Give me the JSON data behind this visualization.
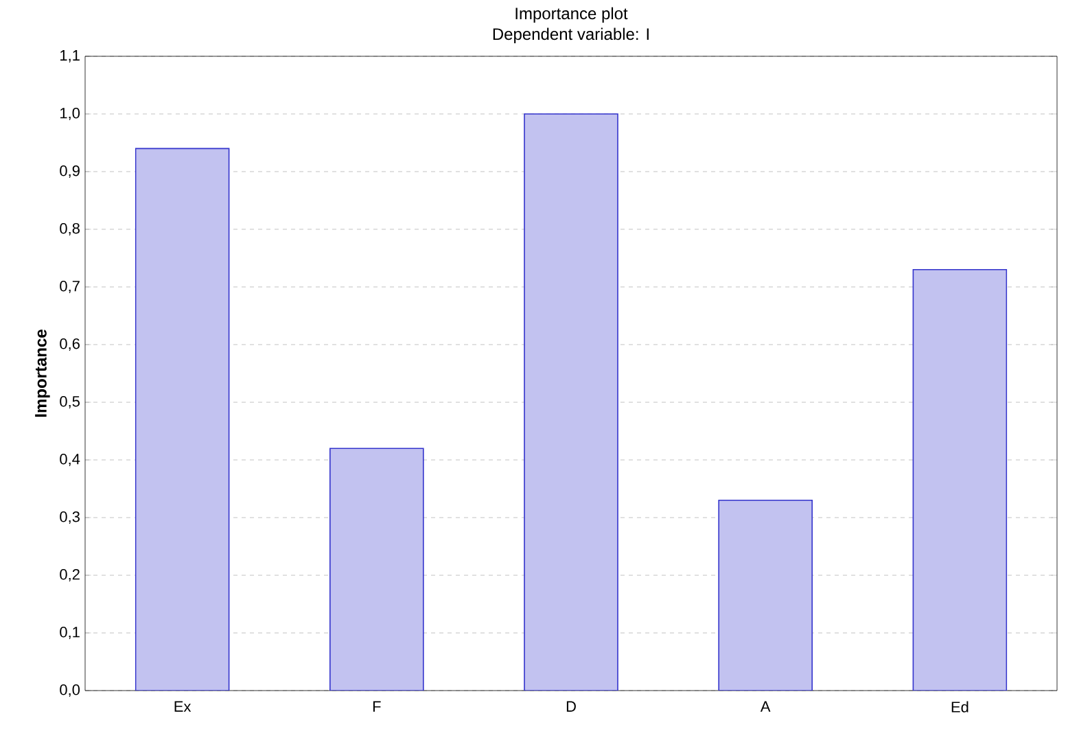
{
  "chart_data": {
    "type": "bar",
    "title": "Importance plot",
    "subtitle": "Dependent variable: I",
    "ylabel": "Importance",
    "categories": [
      "Ex",
      "F",
      "D",
      "A",
      "Ed"
    ],
    "values": [
      0.94,
      0.42,
      1.0,
      0.33,
      0.73
    ],
    "color": "#3333cc",
    "ylim": [
      0,
      1.1
    ],
    "yticks": [
      {
        "value": 0,
        "label": "0,0"
      },
      {
        "value": 0.1,
        "label": "0,1"
      },
      {
        "value": 0.2,
        "label": "0,2"
      },
      {
        "value": 0.3,
        "label": "0,3"
      },
      {
        "value": 0.4,
        "label": "0,4"
      },
      {
        "value": 0.5,
        "label": "0,5"
      },
      {
        "value": 0.6,
        "label": "0,6"
      },
      {
        "value": 0.7,
        "label": "0,7"
      },
      {
        "value": 0.8,
        "label": "0,8"
      },
      {
        "value": 0.9,
        "label": "0,9"
      },
      {
        "value": 1.0,
        "label": "1,0"
      },
      {
        "value": 1.1,
        "label": "1,1"
      }
    ],
    "grid": "y"
  }
}
